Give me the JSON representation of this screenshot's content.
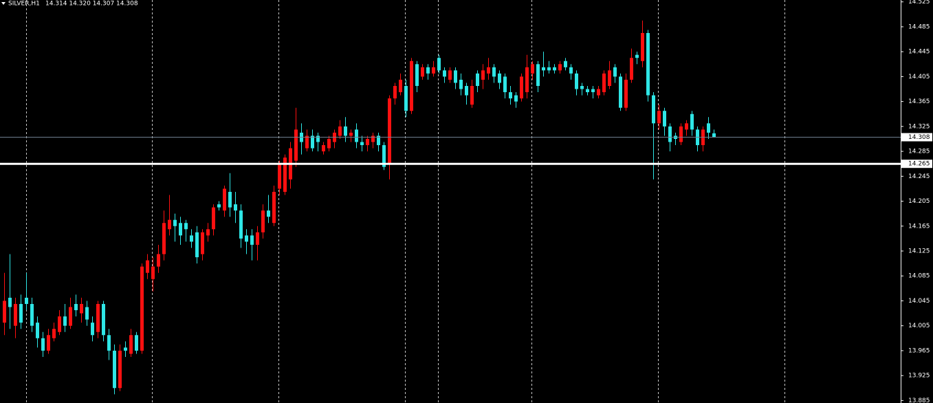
{
  "chart_data": {
    "type": "candlestick",
    "symbol": "SILVER,H1",
    "quote": "14.314 14.320 14.307 14.308",
    "ylim": [
      13.881,
      14.528
    ],
    "yticks": [
      13.885,
      13.925,
      13.965,
      14.005,
      14.045,
      14.085,
      14.125,
      14.165,
      14.205,
      14.245,
      14.285,
      14.325,
      14.365,
      14.405,
      14.445,
      14.485,
      14.525
    ],
    "bid": 14.308,
    "hline": 14.265,
    "up_color": "#ff1010",
    "down_color": "#2ee6e6",
    "bid_line_color": "#6f8090",
    "hline_color": "#ffffff",
    "open": [
      14.01,
      14.05,
      14.005,
      14.04,
      14.05,
      14.04,
      14.01,
      13.985,
      13.965,
      13.985,
      13.995,
      14.02,
      14.005,
      14.04,
      14.025,
      14.035,
      14.01,
      13.995,
      14.04,
      13.99,
      13.965,
      13.905,
      13.97,
      13.96,
      13.99,
      13.965,
      14.09,
      14.08,
      14.1,
      14.12,
      14.16,
      14.175,
      14.17,
      14.17,
      14.15,
      14.155,
      14.12,
      14.15,
      14.16,
      14.2,
      14.19,
      14.22,
      14.2,
      14.19,
      14.15,
      14.15,
      14.135,
      14.155,
      14.19,
      14.17,
      14.225,
      14.22,
      14.24,
      14.27,
      14.315,
      14.29,
      14.31,
      14.31,
      14.285,
      14.29,
      14.3,
      14.31,
      14.325,
      14.31,
      14.32,
      14.3,
      14.295,
      14.3,
      14.31,
      14.295,
      14.265,
      14.37,
      14.38,
      14.39,
      14.35,
      14.425,
      14.405,
      14.42,
      14.41,
      14.435,
      14.415,
      14.4,
      14.415,
      14.4,
      14.39,
      14.36,
      14.41,
      14.4,
      14.41,
      14.42,
      14.41,
      14.405,
      14.38,
      14.375,
      14.37,
      14.38,
      14.41,
      14.425,
      14.42,
      14.42,
      14.42,
      14.415,
      14.43,
      14.42,
      14.41,
      14.39,
      14.385,
      14.385,
      14.375,
      14.38,
      14.39,
      14.42,
      14.405,
      14.355,
      14.4,
      14.44,
      14.43,
      14.475,
      14.375,
      14.33,
      14.35,
      14.325,
      14.31,
      14.3,
      14.32,
      14.345,
      14.32,
      14.295,
      14.33,
      14.314
    ],
    "high": [
      14.09,
      14.12,
      14.05,
      14.055,
      14.09,
      14.05,
      14.02,
      13.995,
      14.0,
      14.01,
      14.03,
      14.04,
      14.05,
      14.055,
      14.05,
      14.045,
      14.02,
      14.045,
      14.045,
      14.0,
      13.975,
      13.975,
      13.98,
      14.0,
      13.995,
      14.105,
      14.12,
      14.115,
      14.135,
      14.19,
      14.215,
      14.185,
      14.18,
      14.175,
      14.16,
      14.165,
      14.16,
      14.17,
      14.2,
      14.205,
      14.23,
      14.25,
      14.22,
      14.2,
      14.16,
      14.16,
      14.165,
      14.2,
      14.215,
      14.23,
      14.27,
      14.28,
      14.3,
      14.355,
      14.33,
      14.32,
      14.32,
      14.315,
      14.3,
      14.31,
      14.32,
      14.335,
      14.34,
      14.32,
      14.33,
      14.31,
      14.31,
      14.315,
      14.315,
      14.3,
      14.375,
      14.395,
      14.41,
      14.4,
      14.435,
      14.43,
      14.425,
      14.425,
      14.43,
      14.44,
      14.42,
      14.42,
      14.42,
      14.41,
      14.395,
      14.4,
      14.415,
      14.425,
      14.435,
      14.425,
      14.415,
      14.41,
      14.39,
      14.38,
      14.41,
      14.44,
      14.43,
      14.43,
      14.445,
      14.43,
      14.425,
      14.43,
      14.435,
      14.425,
      14.415,
      14.395,
      14.39,
      14.39,
      14.39,
      14.415,
      14.43,
      14.425,
      14.41,
      14.41,
      14.45,
      14.445,
      14.495,
      14.48,
      14.38,
      14.36,
      14.355,
      14.33,
      14.315,
      14.33,
      14.335,
      14.35,
      14.325,
      14.325,
      14.34,
      14.32
    ],
    "low": [
      13.99,
      14.0,
      13.985,
      14.0,
      14.03,
      13.995,
      13.97,
      13.955,
      13.96,
      13.98,
      13.99,
      13.995,
      14.0,
      14.02,
      14.01,
      14.005,
      13.98,
      13.985,
      13.98,
      13.95,
      13.895,
      13.9,
      13.955,
      13.955,
      13.96,
      13.96,
      14.08,
      14.06,
      14.09,
      14.11,
      14.15,
      14.14,
      14.135,
      14.14,
      14.13,
      14.105,
      14.11,
      14.14,
      14.15,
      14.19,
      14.18,
      14.18,
      14.17,
      14.13,
      14.12,
      14.11,
      14.11,
      14.145,
      14.17,
      14.165,
      14.215,
      14.215,
      14.225,
      14.26,
      14.28,
      14.285,
      14.285,
      14.285,
      14.28,
      14.285,
      14.29,
      14.305,
      14.3,
      14.3,
      14.29,
      14.285,
      14.285,
      14.29,
      14.285,
      14.255,
      14.24,
      14.36,
      14.375,
      14.34,
      14.345,
      14.38,
      14.4,
      14.4,
      14.405,
      14.41,
      14.395,
      14.395,
      14.385,
      14.375,
      14.36,
      14.355,
      14.38,
      14.385,
      14.4,
      14.395,
      14.385,
      14.37,
      14.36,
      14.355,
      14.365,
      14.37,
      14.4,
      14.38,
      14.405,
      14.41,
      14.41,
      14.41,
      14.415,
      14.4,
      14.375,
      14.375,
      14.375,
      14.37,
      14.37,
      14.375,
      14.385,
      14.395,
      14.35,
      14.35,
      14.395,
      14.425,
      14.42,
      14.365,
      14.24,
      14.32,
      14.31,
      14.285,
      14.295,
      14.295,
      14.31,
      14.31,
      14.285,
      14.285,
      14.305,
      14.307
    ],
    "close": [
      14.045,
      14.035,
      14.04,
      14.01,
      14.04,
      14.005,
      13.985,
      13.965,
      13.99,
      14.0,
      14.02,
      14.005,
      14.035,
      14.03,
      14.04,
      14.015,
      13.99,
      14.04,
      13.99,
      13.965,
      13.905,
      13.965,
      13.965,
      13.99,
      13.965,
      14.1,
      14.11,
      14.1,
      14.12,
      14.17,
      14.175,
      14.165,
      14.15,
      14.16,
      14.14,
      14.115,
      14.155,
      14.16,
      14.195,
      14.195,
      14.225,
      14.195,
      14.19,
      14.145,
      14.14,
      14.135,
      14.155,
      14.19,
      14.18,
      14.22,
      14.265,
      14.275,
      14.29,
      14.32,
      14.3,
      14.31,
      14.29,
      14.3,
      14.295,
      14.305,
      14.315,
      14.325,
      14.31,
      14.315,
      14.3,
      14.295,
      14.305,
      14.31,
      14.295,
      14.26,
      14.37,
      14.39,
      14.4,
      14.35,
      14.43,
      14.39,
      14.42,
      14.41,
      14.42,
      14.415,
      14.405,
      14.415,
      14.395,
      14.385,
      14.375,
      14.39,
      14.39,
      14.415,
      14.42,
      14.405,
      14.395,
      14.38,
      14.37,
      14.365,
      14.405,
      14.42,
      14.425,
      14.39,
      14.415,
      14.415,
      14.415,
      14.425,
      14.42,
      14.41,
      14.385,
      14.385,
      14.38,
      14.38,
      14.385,
      14.41,
      14.415,
      14.405,
      14.355,
      14.4,
      14.435,
      14.435,
      14.475,
      14.375,
      14.33,
      14.35,
      14.325,
      14.3,
      14.305,
      14.325,
      14.33,
      14.32,
      14.295,
      14.32,
      14.315,
      14.308
    ]
  }
}
